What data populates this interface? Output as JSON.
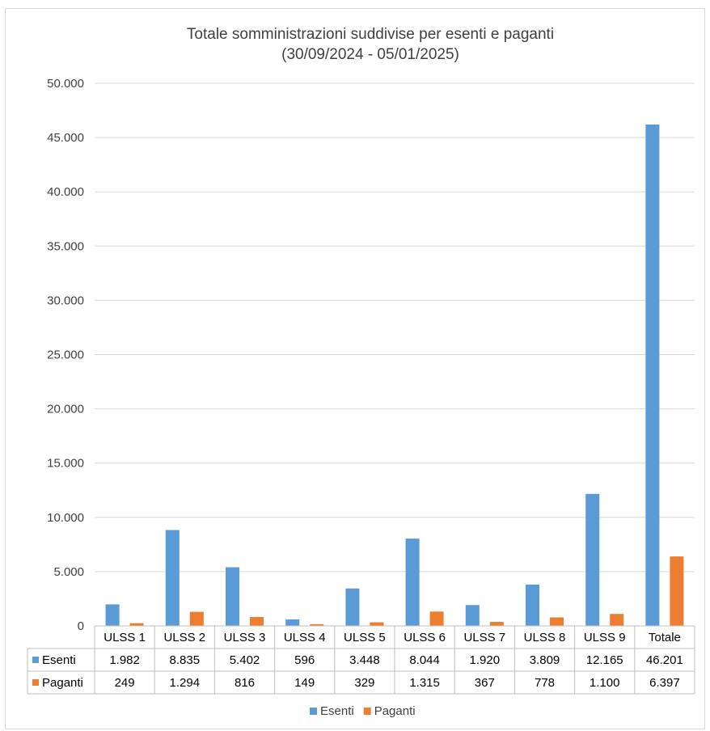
{
  "chart_data": {
    "type": "bar",
    "title": "Totale somministrazioni suddivise per esenti e paganti",
    "subtitle": "(30/09/2024 - 05/01/2025)",
    "categories": [
      "ULSS 1",
      "ULSS 2",
      "ULSS 3",
      "ULSS 4",
      "ULSS 5",
      "ULSS 6",
      "ULSS 7",
      "ULSS 8",
      "ULSS 9",
      "Totale"
    ],
    "series": [
      {
        "name": "Esenti",
        "color": "#5b9bd5",
        "values": [
          1982,
          8835,
          5402,
          596,
          3448,
          8044,
          1920,
          3809,
          12165,
          46201
        ],
        "labels": [
          "1.982",
          "8.835",
          "5.402",
          "596",
          "3.448",
          "8.044",
          "1.920",
          "3.809",
          "12.165",
          "46.201"
        ]
      },
      {
        "name": "Paganti",
        "color": "#ed7d31",
        "values": [
          249,
          1294,
          816,
          149,
          329,
          1315,
          367,
          778,
          1100,
          6397
        ],
        "labels": [
          "249",
          "1.294",
          "816",
          "149",
          "329",
          "1.315",
          "367",
          "778",
          "1.100",
          "6.397"
        ]
      }
    ],
    "ylim": [
      0,
      50000
    ],
    "yticks": [
      0,
      5000,
      10000,
      15000,
      20000,
      25000,
      30000,
      35000,
      40000,
      45000,
      50000
    ],
    "ytick_labels": [
      "0",
      "5.000",
      "10.000",
      "15.000",
      "20.000",
      "25.000",
      "30.000",
      "35.000",
      "40.000",
      "45.000",
      "50.000"
    ],
    "grid": true,
    "legend": "bottom",
    "data_table": true
  }
}
